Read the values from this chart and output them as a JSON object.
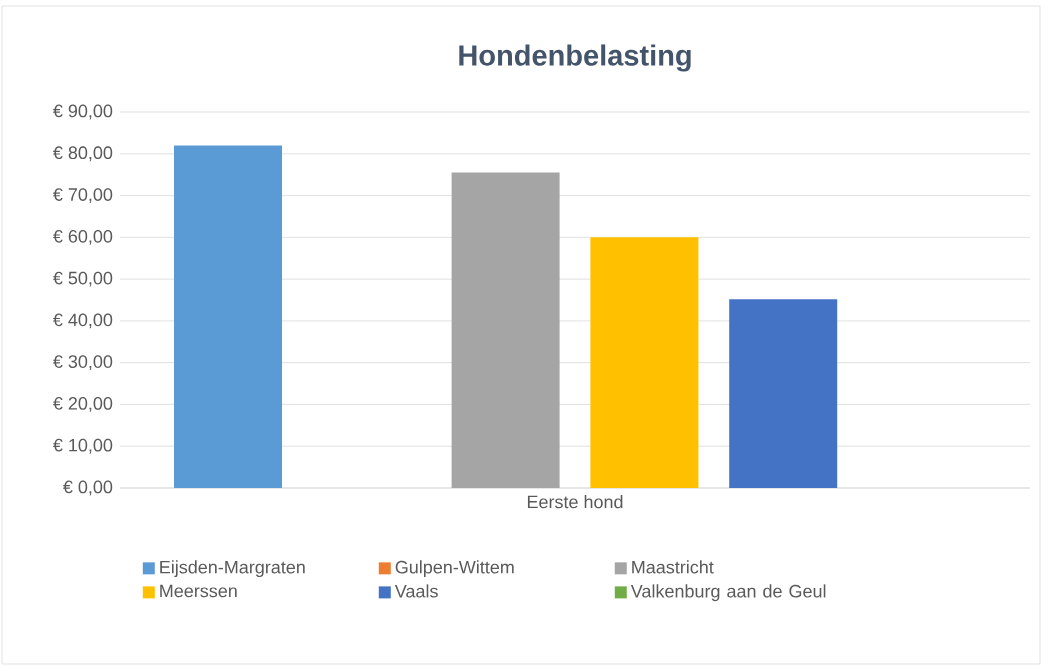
{
  "chart_data": {
    "type": "bar",
    "title": "Hondenbelasting",
    "categories": [
      "Eerste hond"
    ],
    "series": [
      {
        "name": "Eijsden-Margraten",
        "color": "#5b9bd5",
        "values": [
          82
        ]
      },
      {
        "name": "Gulpen-Wittem",
        "color": "#ed7d31",
        "values": [
          null
        ]
      },
      {
        "name": "Maastricht",
        "color": "#a5a5a5",
        "values": [
          75.5
        ]
      },
      {
        "name": "Meerssen",
        "color": "#ffc000",
        "values": [
          60
        ]
      },
      {
        "name": "Vaals",
        "color": "#4472c4",
        "values": [
          45.2
        ]
      },
      {
        "name": "Valkenburg aan de Geul",
        "color": "#70ad47",
        "values": [
          null
        ]
      }
    ],
    "ylim": [
      0,
      90
    ],
    "yticks": [
      {
        "value": 0,
        "label": "€ 0,00"
      },
      {
        "value": 10,
        "label": "€ 10,00"
      },
      {
        "value": 20,
        "label": "€ 20,00"
      },
      {
        "value": 30,
        "label": "€ 30,00"
      },
      {
        "value": 40,
        "label": "€ 40,00"
      },
      {
        "value": 50,
        "label": "€ 50,00"
      },
      {
        "value": 60,
        "label": "€ 60,00"
      },
      {
        "value": 70,
        "label": "€ 70,00"
      },
      {
        "value": 80,
        "label": "€ 80,00"
      },
      {
        "value": 90,
        "label": "€ 90,00"
      }
    ],
    "grid": "y",
    "legend": "bottom"
  }
}
